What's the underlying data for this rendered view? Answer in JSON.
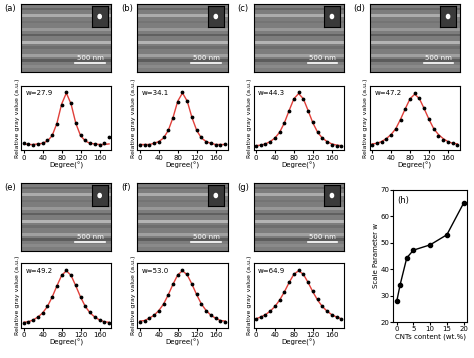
{
  "chart_data": [
    {
      "type": "scatter",
      "title": "(a)",
      "annotations": [
        "500 nm",
        "w=27.9"
      ],
      "x_label": "Degree(°)",
      "y_label": "Relative gray value (a.u.)",
      "x": [
        0,
        10,
        20,
        30,
        40,
        50,
        60,
        70,
        80,
        90,
        100,
        110,
        120,
        130,
        140,
        150,
        160,
        170,
        180
      ],
      "series": [
        {
          "type": "scatter",
          "color": "#000000",
          "marker": "o",
          "values": [
            0.12,
            0.11,
            0.1,
            0.11,
            0.13,
            0.17,
            0.26,
            0.45,
            0.78,
            1.0,
            0.8,
            0.46,
            0.27,
            0.17,
            0.13,
            0.11,
            0.1,
            0.12,
            0.22
          ]
        },
        {
          "type": "line",
          "color": "#e0403a",
          "line_style": "solid",
          "values": [
            0.11,
            0.1,
            0.1,
            0.11,
            0.12,
            0.16,
            0.25,
            0.46,
            0.79,
            0.98,
            0.79,
            0.46,
            0.25,
            0.16,
            0.12,
            0.11,
            0.1,
            0.1,
            0.11
          ]
        }
      ],
      "xlim": [
        -5,
        185
      ],
      "xticks": [
        0,
        40,
        80,
        120,
        160
      ],
      "ylim": [
        0,
        1.1
      ],
      "tick_labels": "x"
    },
    {
      "type": "scatter",
      "title": "(b)",
      "annotations": [
        "500 nm",
        "w=34.1"
      ],
      "x_label": "Degree(°)",
      "y_label": "Relative gray value (a.u.)",
      "x": [
        0,
        10,
        20,
        30,
        40,
        50,
        60,
        70,
        80,
        90,
        100,
        110,
        120,
        130,
        140,
        150,
        160,
        170,
        180
      ],
      "series": [
        {
          "type": "scatter",
          "color": "#000000",
          "marker": "o",
          "values": [
            0.1,
            0.09,
            0.1,
            0.12,
            0.15,
            0.22,
            0.34,
            0.55,
            0.83,
            1.0,
            0.84,
            0.57,
            0.35,
            0.22,
            0.15,
            0.12,
            0.1,
            0.1,
            0.11
          ]
        },
        {
          "type": "line",
          "color": "#e0403a",
          "line_style": "solid",
          "values": [
            0.1,
            0.1,
            0.1,
            0.12,
            0.15,
            0.21,
            0.34,
            0.56,
            0.84,
            0.98,
            0.84,
            0.56,
            0.34,
            0.21,
            0.15,
            0.12,
            0.1,
            0.1,
            0.1
          ]
        }
      ],
      "xlim": [
        -5,
        185
      ],
      "xticks": [
        0,
        40,
        80,
        120,
        160
      ],
      "ylim": [
        0,
        1.1
      ],
      "tick_labels": "x"
    },
    {
      "type": "scatter",
      "title": "(c)",
      "annotations": [
        "500 nm",
        "w=44.3"
      ],
      "x_label": "Degree(°)",
      "y_label": "Relative gray value (a.u.)",
      "x": [
        0,
        10,
        20,
        30,
        40,
        50,
        60,
        70,
        80,
        90,
        100,
        110,
        120,
        130,
        140,
        150,
        160,
        170,
        180
      ],
      "series": [
        {
          "type": "scatter",
          "color": "#000000",
          "marker": "o",
          "values": [
            0.08,
            0.09,
            0.11,
            0.15,
            0.21,
            0.31,
            0.47,
            0.67,
            0.88,
            0.99,
            0.88,
            0.68,
            0.48,
            0.31,
            0.21,
            0.14,
            0.1,
            0.08,
            0.07
          ]
        },
        {
          "type": "line",
          "color": "#e0403a",
          "line_style": "solid",
          "values": [
            0.08,
            0.09,
            0.11,
            0.15,
            0.21,
            0.31,
            0.47,
            0.68,
            0.88,
            0.97,
            0.88,
            0.68,
            0.47,
            0.31,
            0.21,
            0.15,
            0.11,
            0.09,
            0.08
          ]
        }
      ],
      "xlim": [
        -5,
        185
      ],
      "xticks": [
        0,
        40,
        80,
        120,
        160
      ],
      "ylim": [
        0,
        1.1
      ],
      "tick_labels": "x"
    },
    {
      "type": "scatter",
      "title": "(d)",
      "annotations": [
        "500 nm",
        "w=47.2"
      ],
      "x_label": "Degree(°)",
      "y_label": "Relative gray value (a.u.)",
      "x": [
        0,
        10,
        20,
        30,
        40,
        50,
        60,
        70,
        80,
        90,
        100,
        110,
        120,
        130,
        140,
        150,
        160,
        170,
        180
      ],
      "series": [
        {
          "type": "scatter",
          "color": "#000000",
          "marker": "o",
          "values": [
            0.1,
            0.12,
            0.15,
            0.19,
            0.26,
            0.36,
            0.52,
            0.7,
            0.88,
            0.98,
            0.9,
            0.73,
            0.54,
            0.37,
            0.25,
            0.18,
            0.14,
            0.12,
            0.1
          ]
        },
        {
          "type": "line",
          "color": "#e0403a",
          "line_style": "solid",
          "values": [
            0.11,
            0.12,
            0.15,
            0.2,
            0.27,
            0.37,
            0.53,
            0.71,
            0.88,
            0.96,
            0.88,
            0.71,
            0.53,
            0.37,
            0.27,
            0.2,
            0.15,
            0.12,
            0.11
          ]
        }
      ],
      "xlim": [
        -5,
        185
      ],
      "xticks": [
        0,
        40,
        80,
        120,
        160
      ],
      "ylim": [
        0,
        1.1
      ],
      "tick_labels": "x"
    },
    {
      "type": "scatter",
      "title": "(e)",
      "annotations": [
        "500 nm",
        "w=49.2"
      ],
      "x_label": "Degree(°)",
      "y_label": "Relative gray value (a.u.)",
      "x": [
        0,
        10,
        20,
        30,
        40,
        50,
        60,
        70,
        80,
        90,
        100,
        110,
        120,
        130,
        140,
        150,
        160,
        170,
        180
      ],
      "series": [
        {
          "type": "scatter",
          "color": "#000000",
          "marker": "o",
          "values": [
            0.08,
            0.1,
            0.13,
            0.18,
            0.25,
            0.36,
            0.52,
            0.71,
            0.9,
            0.99,
            0.9,
            0.72,
            0.53,
            0.37,
            0.26,
            0.18,
            0.13,
            0.1,
            0.08
          ]
        },
        {
          "type": "line",
          "color": "#e0403a",
          "line_style": "solid",
          "values": [
            0.09,
            0.1,
            0.13,
            0.18,
            0.25,
            0.36,
            0.52,
            0.71,
            0.89,
            0.97,
            0.89,
            0.71,
            0.52,
            0.36,
            0.25,
            0.18,
            0.13,
            0.1,
            0.09
          ]
        }
      ],
      "xlim": [
        -5,
        185
      ],
      "xticks": [
        0,
        40,
        80,
        120,
        160
      ],
      "ylim": [
        0,
        1.1
      ],
      "tick_labels": "x"
    },
    {
      "type": "scatter",
      "title": "(f)",
      "annotations": [
        "500 nm",
        "w=53.0"
      ],
      "x_label": "Degree(°)",
      "y_label": "Relative gray value (a.u.)",
      "x": [
        0,
        10,
        20,
        30,
        40,
        50,
        60,
        70,
        80,
        90,
        100,
        110,
        120,
        130,
        140,
        150,
        160,
        170,
        180
      ],
      "series": [
        {
          "type": "scatter",
          "color": "#000000",
          "marker": "o",
          "values": [
            0.1,
            0.12,
            0.16,
            0.21,
            0.29,
            0.4,
            0.56,
            0.74,
            0.9,
            0.99,
            0.91,
            0.75,
            0.57,
            0.41,
            0.29,
            0.21,
            0.16,
            0.12,
            0.1
          ]
        },
        {
          "type": "line",
          "color": "#e0403a",
          "line_style": "solid",
          "values": [
            0.11,
            0.12,
            0.16,
            0.21,
            0.29,
            0.4,
            0.56,
            0.74,
            0.9,
            0.97,
            0.9,
            0.74,
            0.56,
            0.4,
            0.29,
            0.21,
            0.16,
            0.12,
            0.11
          ]
        }
      ],
      "xlim": [
        -5,
        185
      ],
      "xticks": [
        0,
        40,
        80,
        120,
        160
      ],
      "ylim": [
        0,
        1.1
      ],
      "tick_labels": "x"
    },
    {
      "type": "scatter",
      "title": "(g)",
      "annotations": [
        "500 nm",
        "w=64.9"
      ],
      "x_label": "Degree(°)",
      "y_label": "Relative gray value (a.u.)",
      "x": [
        0,
        10,
        20,
        30,
        40,
        50,
        60,
        70,
        80,
        90,
        100,
        110,
        120,
        130,
        140,
        150,
        160,
        170,
        180
      ],
      "series": [
        {
          "type": "scatter",
          "color": "#000000",
          "marker": "o",
          "values": [
            0.15,
            0.18,
            0.22,
            0.28,
            0.36,
            0.47,
            0.61,
            0.77,
            0.91,
            0.99,
            0.92,
            0.78,
            0.62,
            0.48,
            0.37,
            0.29,
            0.22,
            0.18,
            0.15
          ]
        },
        {
          "type": "line",
          "color": "#e0403a",
          "line_style": "solid",
          "values": [
            0.15,
            0.18,
            0.22,
            0.28,
            0.36,
            0.47,
            0.61,
            0.77,
            0.91,
            0.97,
            0.91,
            0.77,
            0.61,
            0.47,
            0.36,
            0.28,
            0.22,
            0.18,
            0.15
          ]
        }
      ],
      "xlim": [
        -5,
        185
      ],
      "xticks": [
        0,
        40,
        80,
        120,
        160
      ],
      "ylim": [
        0,
        1.1
      ],
      "tick_labels": "x"
    },
    {
      "type": "line",
      "title": "(h)",
      "x_label": "CNTs content (wt.%)",
      "y_label": "Scale Parameter w",
      "x": [
        0,
        1,
        3,
        5,
        10,
        15,
        20
      ],
      "values": [
        27.9,
        34.1,
        44.3,
        47.2,
        49.2,
        53.0,
        64.9
      ],
      "color": "#000000",
      "marker": "o",
      "xlim": [
        -1,
        21
      ],
      "xticks": [
        0,
        5,
        10,
        15,
        20
      ],
      "ylim": [
        20,
        70
      ],
      "yticks": [
        20,
        30,
        40,
        50,
        60,
        70
      ]
    }
  ]
}
